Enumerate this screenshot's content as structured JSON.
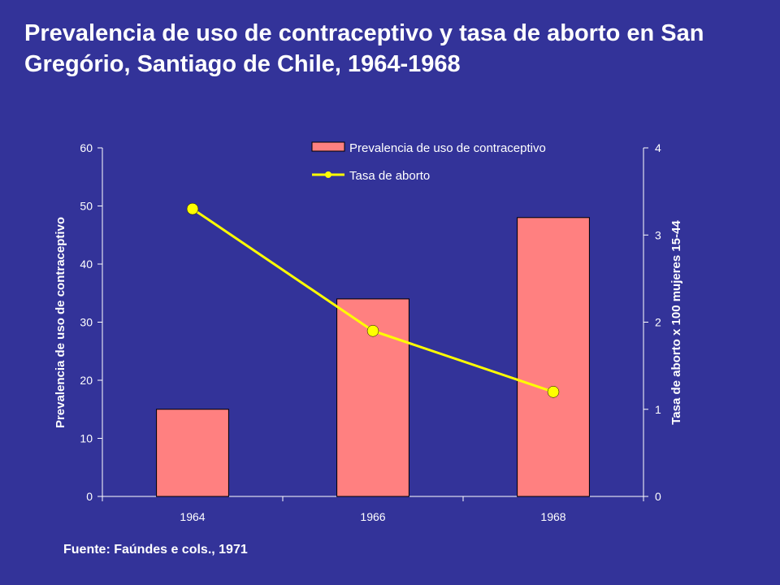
{
  "slide": {
    "title": "Prevalencia de uso de contraceptivo y tasa de aborto en San Gregório, Santiago de Chile, 1964-1968",
    "source": "Fuente: Faúndes e cols., 1971"
  },
  "colors": {
    "background": "#333399",
    "bar": "#ff8080",
    "line": "#ffff00",
    "axis": "#ffffff"
  },
  "chart_data": {
    "type": "bar+line",
    "categories": [
      "1964",
      "1966",
      "1968"
    ],
    "series": [
      {
        "name": "Prevalencia de uso de contraceptivo",
        "type": "bar",
        "axis": "left",
        "values": [
          15,
          34,
          48
        ]
      },
      {
        "name": "Tasa de aborto",
        "type": "line",
        "axis": "right",
        "values": [
          3.3,
          1.9,
          1.2
        ]
      }
    ],
    "ylabel_left": "Prevalencia de uso de contraceptivo",
    "ylabel_right": "Tasa de aborto x 100 mujeres 15-44",
    "ylim_left": [
      0,
      60
    ],
    "yticks_left": [
      "0",
      "10",
      "20",
      "30",
      "40",
      "50",
      "60"
    ],
    "ylim_right": [
      0,
      4
    ],
    "yticks_right": [
      "0",
      "1",
      "2",
      "3",
      "4"
    ],
    "grid": false,
    "legend_position": "top-right"
  }
}
